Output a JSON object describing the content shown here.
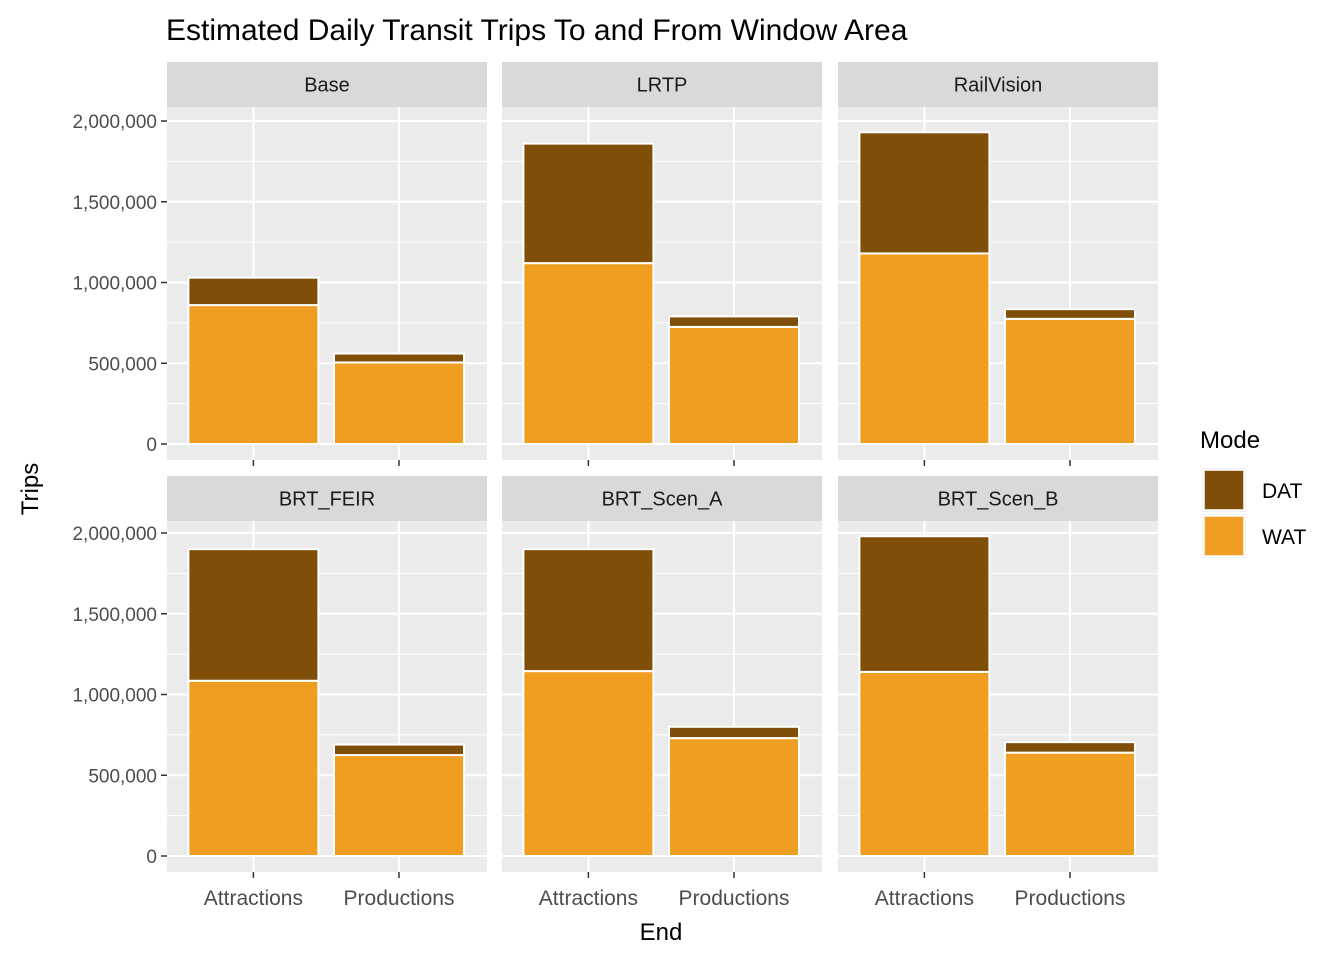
{
  "chart_data": {
    "type": "bar",
    "stacked": true,
    "title": "Estimated Daily Transit Trips To and From Window Area",
    "xlabel": "End",
    "ylabel": "Trips",
    "ylim": [
      0,
      2300000
    ],
    "yticks": [
      0,
      500000,
      1000000,
      1500000,
      2000000
    ],
    "ytick_labels": [
      "0",
      "500,000",
      "1,000,000",
      "1,500,000",
      "2,000,000"
    ],
    "categories": [
      "Attractions",
      "Productions"
    ],
    "grid": true,
    "legend": {
      "title": "Mode",
      "placement": "right",
      "entries": [
        {
          "name": "DAT",
          "color": "#7F4F0A"
        },
        {
          "name": "WAT",
          "color": "#F09E22"
        }
      ]
    },
    "panels": [
      {
        "name": "Base",
        "series": [
          {
            "name": "WAT",
            "values": [
              860000,
              505000
            ]
          },
          {
            "name": "DAT",
            "values": [
              170000,
              55000
            ]
          }
        ]
      },
      {
        "name": "LRTP",
        "series": [
          {
            "name": "WAT",
            "values": [
              1120000,
              725000
            ]
          },
          {
            "name": "DAT",
            "values": [
              740000,
              65000
            ]
          }
        ]
      },
      {
        "name": "RailVision",
        "series": [
          {
            "name": "WAT",
            "values": [
              1180000,
              775000
            ]
          },
          {
            "name": "DAT",
            "values": [
              750000,
              60000
            ]
          }
        ]
      },
      {
        "name": "BRT_FEIR",
        "series": [
          {
            "name": "WAT",
            "values": [
              1085000,
              625000
            ]
          },
          {
            "name": "DAT",
            "values": [
              815000,
              65000
            ]
          }
        ]
      },
      {
        "name": "BRT_Scen_A",
        "series": [
          {
            "name": "WAT",
            "values": [
              1145000,
              730000
            ]
          },
          {
            "name": "DAT",
            "values": [
              755000,
              70000
            ]
          }
        ]
      },
      {
        "name": "BRT_Scen_B",
        "series": [
          {
            "name": "WAT",
            "values": [
              1140000,
              640000
            ]
          },
          {
            "name": "DAT",
            "values": [
              840000,
              65000
            ]
          }
        ]
      }
    ]
  }
}
